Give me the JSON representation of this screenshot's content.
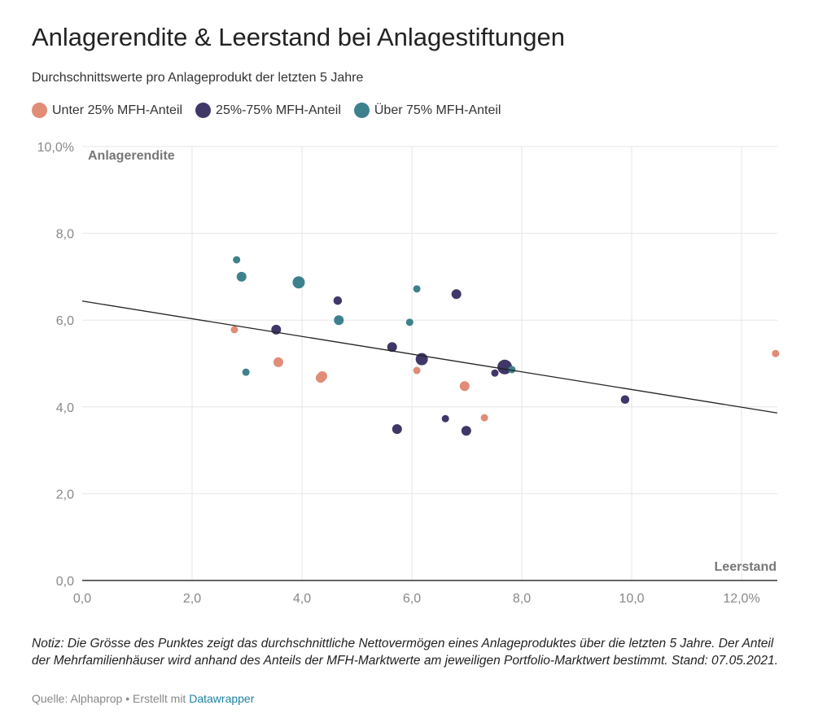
{
  "title": "Anlagerendite & Leerstand bei Anlagestiftungen",
  "subtitle": "Durchschnittswerte pro Anlageprodukt der letzten 5 Jahre",
  "note": "Notiz: Die Grösse des Punktes zeigt das durchschnittliche Nettovermögen eines Anlageproduktes über die letzten 5 Jahre. Der Anteil der Mehrfamilienhäuser wird anhand des Anteils der MFH-Marktwerte am jeweiligen Portfolio-Marktwert bestimmt. Stand: 07.05.2021.",
  "source_prefix": "Quelle: Alphaprop • Erstellt mit ",
  "source_link": "Datawrapper",
  "chart_data": {
    "type": "scatter",
    "xlabel": "Leerstand",
    "ylabel": "Anlagerendite",
    "xlim": [
      0,
      12.65
    ],
    "ylim": [
      0,
      10
    ],
    "x_ticks": [
      "0,0",
      "2,0",
      "4,0",
      "6,0",
      "8,0",
      "10,0",
      "12,0%"
    ],
    "y_ticks": [
      "0,0",
      "2,0",
      "4,0",
      "6,0",
      "8,0",
      "10,0%"
    ],
    "grid": true,
    "legend": "top",
    "series": [
      {
        "name": "Unter 25% MFH-Anteil",
        "color": "#e08c76",
        "points": [
          {
            "x": 2.77,
            "y": 5.78,
            "size": 1
          },
          {
            "x": 3.57,
            "y": 5.03,
            "size": 2
          },
          {
            "x": 4.34,
            "y": 4.67,
            "size": 2
          },
          {
            "x": 4.37,
            "y": 4.71,
            "size": 2
          },
          {
            "x": 6.09,
            "y": 4.84,
            "size": 1
          },
          {
            "x": 6.96,
            "y": 4.48,
            "size": 2
          },
          {
            "x": 7.32,
            "y": 3.75,
            "size": 1
          },
          {
            "x": 12.62,
            "y": 5.23,
            "size": 1
          }
        ]
      },
      {
        "name": "25%-75% MFH-Anteil",
        "color": "#3f3768",
        "points": [
          {
            "x": 4.65,
            "y": 6.45,
            "size": 1.5
          },
          {
            "x": 3.53,
            "y": 5.78,
            "size": 2
          },
          {
            "x": 6.81,
            "y": 6.6,
            "size": 2
          },
          {
            "x": 5.64,
            "y": 5.38,
            "size": 2
          },
          {
            "x": 6.18,
            "y": 5.1,
            "size": 3
          },
          {
            "x": 7.69,
            "y": 4.92,
            "size": 4
          },
          {
            "x": 7.51,
            "y": 4.78,
            "size": 1
          },
          {
            "x": 9.88,
            "y": 4.17,
            "size": 1.5
          },
          {
            "x": 5.73,
            "y": 3.49,
            "size": 2
          },
          {
            "x": 6.61,
            "y": 3.73,
            "size": 1
          },
          {
            "x": 6.99,
            "y": 3.45,
            "size": 2
          }
        ]
      },
      {
        "name": "Über 75% MFH-Anteil",
        "color": "#3d818d",
        "points": [
          {
            "x": 2.81,
            "y": 7.39,
            "size": 1
          },
          {
            "x": 2.9,
            "y": 7.0,
            "size": 2
          },
          {
            "x": 3.94,
            "y": 6.87,
            "size": 3
          },
          {
            "x": 2.98,
            "y": 4.8,
            "size": 1
          },
          {
            "x": 4.67,
            "y": 6.0,
            "size": 2
          },
          {
            "x": 6.09,
            "y": 6.72,
            "size": 1
          },
          {
            "x": 5.96,
            "y": 5.95,
            "size": 1
          },
          {
            "x": 7.82,
            "y": 4.86,
            "size": 1
          }
        ]
      }
    ],
    "trendline": {
      "x": [
        0,
        12.65
      ],
      "y": [
        6.44,
        3.86
      ]
    }
  }
}
